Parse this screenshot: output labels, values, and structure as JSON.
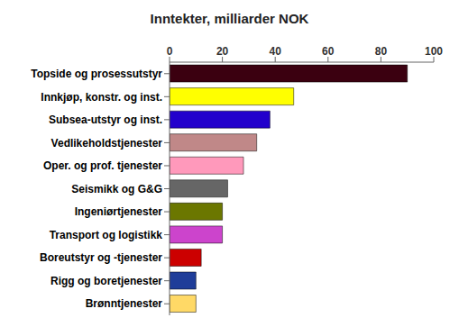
{
  "chart_data": {
    "type": "bar",
    "orientation": "horizontal",
    "title": "Inntekter, milliarder NOK",
    "categories": [
      "Brønntjenester",
      "Rigg og boretjenester",
      "Boreutstyr og -tjenester",
      "Transport og logistikk",
      "Ingeniørtjenester",
      "Seismikk og G&G",
      "Oper. og prof. tjenester",
      "Vedlikeholdstjenester",
      "Subsea-utstyr og inst.",
      "Innkjøp, konstr. og inst.",
      "Topside og prosessutstyr"
    ],
    "values": [
      10,
      10,
      12,
      20,
      20,
      22,
      28,
      33,
      38,
      47,
      90
    ],
    "colors": [
      "#FFD966",
      "#1F3D99",
      "#CC0000",
      "#CC44CC",
      "#6B7700",
      "#666666",
      "#FF99BB",
      "#C08888",
      "#2200CC",
      "#FFFF00",
      "#3B0010"
    ],
    "xlim": [
      0,
      100
    ],
    "xticks": [
      0,
      20,
      40,
      60,
      80,
      100
    ],
    "grid": false
  }
}
